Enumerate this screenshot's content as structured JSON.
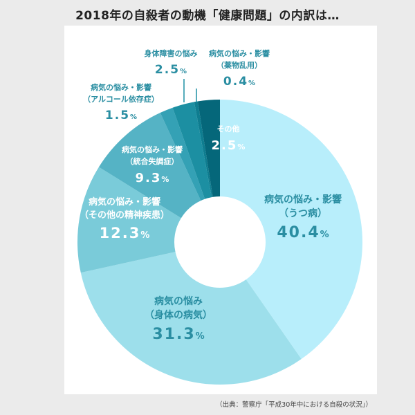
{
  "title": "2018年の自殺者の動機「健康問題」の内訳は…",
  "source": "（出典：警察庁「平成30年中における自殺の状況」）",
  "chart_data": {
    "type": "pie",
    "title": "2018年の自殺者の動機「健康問題」の内訳は…",
    "donut": true,
    "slices": [
      {
        "lines": [
          "病気の悩み・影響",
          "（うつ病）"
        ],
        "value": 40.4,
        "pct": "40.4",
        "color": "#b8eefb"
      },
      {
        "lines": [
          "病気の悩み",
          "（身体の病気）"
        ],
        "value": 31.3,
        "pct": "31.3",
        "color": "#9ddfeb"
      },
      {
        "lines": [
          "病気の悩み・影響",
          "（その他の精神疾患）"
        ],
        "value": 12.3,
        "pct": "12.3",
        "color": "#7acbd9"
      },
      {
        "lines": [
          "病気の悩み・影響",
          "（統合失調症）"
        ],
        "value": 9.3,
        "pct": "9.3",
        "color": "#55b3c5"
      },
      {
        "lines": [
          "病気の悩み・影響",
          "（アルコール依存症）"
        ],
        "value": 1.5,
        "pct": "1.5",
        "color": "#34a1b5"
      },
      {
        "lines": [
          "身体障害の悩み"
        ],
        "value": 2.5,
        "pct": "2.5",
        "color": "#1c8fa2"
      },
      {
        "lines": [
          "病気の悩み・影響",
          "（薬物乱用）"
        ],
        "value": 0.4,
        "pct": "0.4",
        "color": "#0e7d90"
      },
      {
        "lines": [
          "その他"
        ],
        "value": 2.5,
        "pct": "2.5",
        "color": "#05677a"
      }
    ]
  }
}
